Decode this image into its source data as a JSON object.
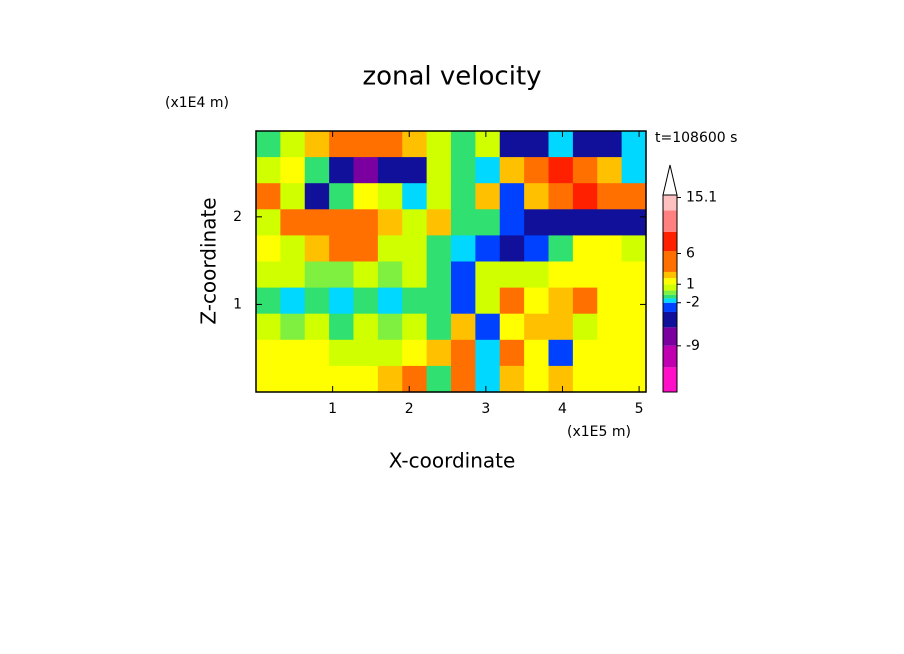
{
  "chart_data": {
    "type": "contour",
    "title": "zonal velocity",
    "x_label": "X-coordinate",
    "y_label": "Z-coordinate",
    "x_unit": "(x1E5 m)",
    "y_unit": "(x1E4 m)",
    "annotation": "t=108600 s",
    "xlim": [
      0,
      5.09
    ],
    "ylim": [
      0,
      2.98
    ],
    "xticks": [
      1,
      2,
      3,
      4,
      5
    ],
    "yticks": [
      1,
      2
    ],
    "z": [
      [
        -1,
        0.5,
        2,
        4,
        4,
        5,
        2,
        0,
        -1,
        0.5,
        -4,
        -4,
        -2,
        -4,
        -4,
        -1.5
      ],
      [
        0.5,
        1.5,
        -1,
        -5,
        -8,
        -6,
        -4,
        0,
        -1,
        -2,
        2,
        4,
        7,
        5,
        2,
        -1.5
      ],
      [
        3,
        0,
        -4,
        -1,
        1,
        0,
        -2,
        0.5,
        -1,
        2,
        -3,
        2,
        5,
        8,
        4,
        3
      ],
      [
        0.5,
        4,
        5,
        5,
        4.5,
        2,
        0,
        2,
        -1,
        -1,
        -3,
        -5,
        -5,
        -4,
        -4,
        -5
      ],
      [
        1,
        0.5,
        2,
        4,
        3,
        0,
        0,
        -1,
        -2,
        -3,
        -4,
        -3,
        -1,
        1,
        1,
        0
      ],
      [
        0,
        0,
        -0.5,
        -0.5,
        0,
        -0.5,
        0,
        -1,
        -3,
        0,
        0,
        0,
        1,
        1.5,
        1.5,
        1.5
      ],
      [
        -1,
        -1.5,
        -1,
        -1.5,
        -1,
        -2,
        -1,
        -1,
        -3,
        0,
        3,
        1,
        2,
        3,
        1.5,
        1.5
      ],
      [
        0,
        -0.5,
        0.5,
        -1,
        0,
        -0.5,
        0,
        -1,
        2,
        -3,
        1,
        2,
        2,
        0,
        1,
        1.5
      ],
      [
        1.5,
        1.5,
        1,
        0.5,
        0,
        0,
        1,
        2,
        3,
        -2,
        4,
        1,
        -3,
        1,
        1.5,
        1.5
      ],
      [
        1.5,
        1.5,
        1.5,
        1.5,
        1,
        2,
        3,
        -1,
        3,
        -2,
        2,
        1,
        2,
        1.5,
        1.5,
        1.5
      ]
    ],
    "levels": [
      -16.5,
      -12.5,
      -9,
      -6,
      -3.5,
      -2,
      -1.3,
      -0.7,
      0,
      1,
      2,
      3,
      6.4,
      9.5,
      13,
      15.5
    ],
    "colors": [
      "#ff10c8",
      "#c000b0",
      "#7a00a0",
      "#10109a",
      "#0040ff",
      "#00d8ff",
      "#30e070",
      "#80f040",
      "#d0ff00",
      "#ffff00",
      "#ffc000",
      "#ff7000",
      "#ff2000",
      "#ff8080",
      "#ffc0c0"
    ],
    "colorbar_ticks": [
      -9,
      -2,
      1,
      6,
      15.1
    ],
    "colorbar_extend": "max"
  }
}
